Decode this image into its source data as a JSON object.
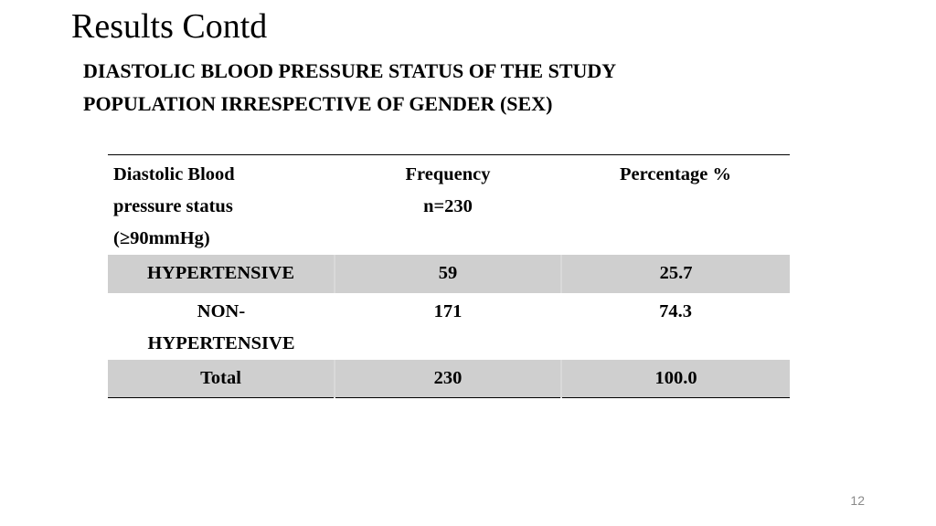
{
  "slide": {
    "title": "Results Contd",
    "subtitle_line1": "DIASTOLIC BLOOD PRESSURE STATUS OF THE STUDY",
    "subtitle_line2": "POPULATION IRRESPECTIVE OF GENDER (SEX)",
    "page_number": "12"
  },
  "table": {
    "headers": {
      "col1_line1": "Diastolic Blood",
      "col1_line2": "pressure status",
      "col1_line3": "(≥90mmHg)",
      "col2_line1": "Frequency",
      "col2_line2": "n=230",
      "col3": "Percentage %"
    },
    "rows": [
      {
        "status": "HYPERTENSIVE",
        "frequency": "59",
        "percentage": "25.7"
      },
      {
        "status_line1": "NON-",
        "status_line2": "HYPERTENSIVE",
        "frequency": "171",
        "percentage": "74.3"
      },
      {
        "status": "Total",
        "frequency": "230",
        "percentage": "100.0"
      }
    ]
  }
}
